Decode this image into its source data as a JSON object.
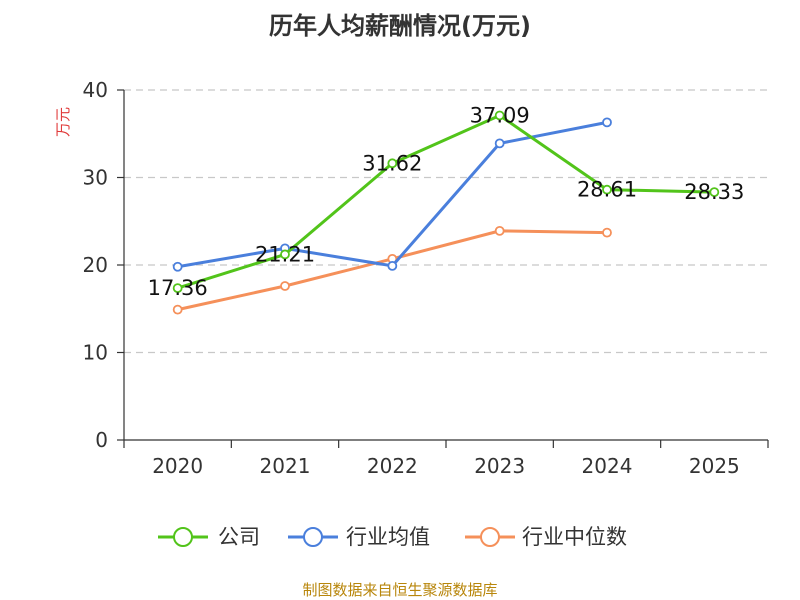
{
  "chart_data": {
    "type": "line",
    "title": "历年人均薪酬情况(万元)",
    "ylabel": "万元",
    "xlabel": "",
    "categories": [
      "2020",
      "2021",
      "2022",
      "2023",
      "2024",
      "2025"
    ],
    "ylim": [
      0,
      40
    ],
    "yticks": [
      0,
      10,
      20,
      30,
      40
    ],
    "grid": true,
    "legend_position": "bottom",
    "series": [
      {
        "name": "公司",
        "color": "#52c41a",
        "values": [
          17.36,
          21.21,
          31.62,
          37.09,
          28.61,
          28.33
        ],
        "labels": [
          "17.36",
          "21.21",
          "31.62",
          "37.09",
          "28.61",
          "28.33"
        ]
      },
      {
        "name": "行业均值",
        "color": "#4a7fdc",
        "values": [
          19.8,
          21.9,
          19.9,
          33.9,
          36.3,
          null
        ],
        "labels": []
      },
      {
        "name": "行业中位数",
        "color": "#f5905a",
        "values": [
          14.9,
          17.6,
          20.7,
          23.9,
          23.7,
          null
        ],
        "labels": []
      }
    ]
  },
  "source": "制图数据来自恒生聚源数据库"
}
